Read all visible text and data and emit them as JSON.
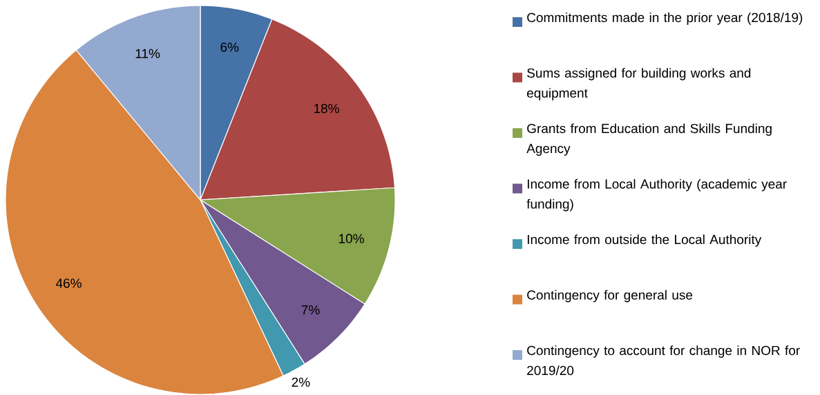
{
  "chart_data": {
    "type": "pie",
    "categories": [
      "Commitments made in the prior year (2018/19)",
      "Sums assigned for building works and equipment",
      "Grants from Education and Skills Funding Agency",
      "Income from Local Authority (academic year funding)",
      "Income from outside the Local Authority",
      "Contingency for general use",
      "Contingency to account for change in NOR for 2019/20"
    ],
    "values": [
      6,
      18,
      10,
      7,
      2,
      46,
      11
    ],
    "colors": [
      "#4572a7",
      "#aa4643",
      "#89a54e",
      "#71588f",
      "#4198af",
      "#db843d",
      "#93a9cf"
    ],
    "value_labels": [
      "6%",
      "18%",
      "10%",
      "7%",
      "2%",
      "46%",
      "11%"
    ],
    "legend": "right"
  }
}
